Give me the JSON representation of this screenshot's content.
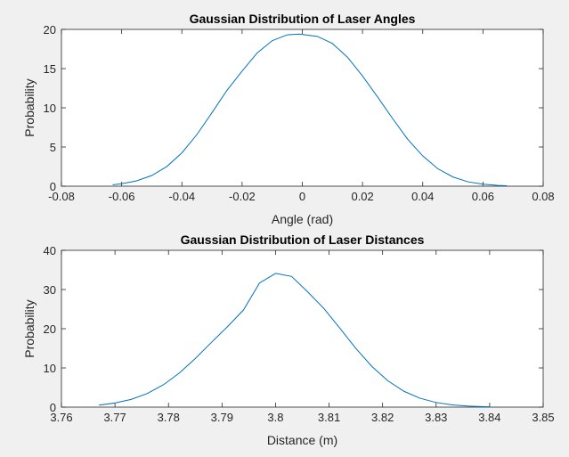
{
  "chart_data": [
    {
      "type": "line",
      "title": "Gaussian Distribution of Laser Angles",
      "xlabel": "Angle (rad)",
      "ylabel": "Probability",
      "xlim": [
        -0.08,
        0.08
      ],
      "ylim": [
        0,
        20
      ],
      "xticks": [
        -0.08,
        -0.06,
        -0.04,
        -0.02,
        0,
        0.02,
        0.04,
        0.06,
        0.08
      ],
      "xtick_labels": [
        "-0.08",
        "-0.06",
        "-0.04",
        "-0.02",
        "0",
        "0.02",
        "0.04",
        "0.06",
        "0.08"
      ],
      "yticks": [
        0,
        5,
        10,
        15,
        20
      ],
      "ytick_labels": [
        "0",
        "5",
        "10",
        "15",
        "20"
      ],
      "grid": false,
      "series": [
        {
          "color": "#0072bd",
          "x": [
            -0.063,
            -0.06,
            -0.055,
            -0.05,
            -0.045,
            -0.04,
            -0.035,
            -0.03,
            -0.025,
            -0.02,
            -0.015,
            -0.01,
            -0.005,
            -0.001,
            0.005,
            0.01,
            0.015,
            0.02,
            0.025,
            0.03,
            0.035,
            0.04,
            0.045,
            0.05,
            0.055,
            0.06,
            0.065,
            0.068
          ],
          "y": [
            0.18,
            0.31,
            0.68,
            1.36,
            2.51,
            4.25,
            6.59,
            9.38,
            12.24,
            14.68,
            16.99,
            18.56,
            19.31,
            19.4,
            19.11,
            18.2,
            16.45,
            14.05,
            11.39,
            8.62,
            5.99,
            3.86,
            2.23,
            1.18,
            0.56,
            0.25,
            0.1,
            0.05
          ]
        }
      ]
    },
    {
      "type": "line",
      "title": "Gaussian Distribution of Laser Distances",
      "xlabel": "Distance (m)",
      "ylabel": "Probability",
      "xlim": [
        3.76,
        3.85
      ],
      "ylim": [
        0,
        40
      ],
      "xticks": [
        3.76,
        3.77,
        3.78,
        3.79,
        3.8,
        3.81,
        3.82,
        3.83,
        3.84,
        3.85
      ],
      "xtick_labels": [
        "3.76",
        "3.77",
        "3.78",
        "3.79",
        "3.8",
        "3.81",
        "3.82",
        "3.83",
        "3.84",
        "3.85"
      ],
      "yticks": [
        0,
        10,
        20,
        30,
        40
      ],
      "ytick_labels": [
        "0",
        "10",
        "20",
        "30",
        "40"
      ],
      "grid": false,
      "series": [
        {
          "color": "#0072bd",
          "x": [
            3.767,
            3.77,
            3.773,
            3.776,
            3.779,
            3.782,
            3.785,
            3.788,
            3.791,
            3.794,
            3.797,
            3.8,
            3.803,
            3.806,
            3.809,
            3.812,
            3.815,
            3.818,
            3.821,
            3.824,
            3.827,
            3.83,
            3.833,
            3.836,
            3.839,
            3.84
          ],
          "y": [
            0.52,
            1.04,
            1.96,
            3.45,
            5.66,
            8.67,
            12.38,
            16.49,
            20.48,
            24.77,
            31.65,
            34.11,
            33.34,
            29.41,
            25.21,
            20.15,
            14.98,
            10.37,
            6.7,
            4.03,
            2.26,
            1.18,
            0.58,
            0.26,
            0.11,
            0.08
          ]
        }
      ]
    }
  ]
}
